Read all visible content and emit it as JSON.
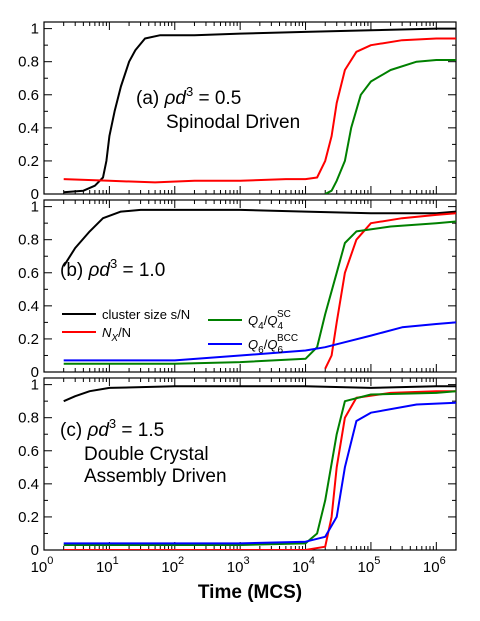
{
  "chart_data": {
    "type": "line",
    "xscale": "log",
    "xlim": [
      1,
      2000000
    ],
    "xlabel": "Time (MCS)",
    "x_tick_labels": [
      {
        "base": "10",
        "exp": "0",
        "value": 1
      },
      {
        "base": "10",
        "exp": "1",
        "value": 10
      },
      {
        "base": "10",
        "exp": "2",
        "value": 100
      },
      {
        "base": "10",
        "exp": "3",
        "value": 1000
      },
      {
        "base": "10",
        "exp": "4",
        "value": 10000
      },
      {
        "base": "10",
        "exp": "5",
        "value": 100000
      },
      {
        "base": "10",
        "exp": "6",
        "value": 1000000
      }
    ],
    "colors": {
      "cluster": "#000000",
      "nx": "#ff0000",
      "q4": "#008000",
      "q6": "#0000ff"
    },
    "legend": {
      "cluster": "cluster size s/N",
      "nx": "N_X/N",
      "q4": "Q_4/Q_4^SC",
      "q6": "Q_6/Q_6^BCC"
    },
    "panels": [
      {
        "label_prefix": "(a) ",
        "rho": "ρ",
        "d": "d",
        "exp": "3",
        "value_text": " = 0.5",
        "subtitle": [
          "Spinodal Driven"
        ],
        "ylim": [
          0,
          1.04
        ],
        "yticks": [
          "0",
          "0.2",
          "0.4",
          "0.6",
          "0.8",
          "1"
        ],
        "series": {
          "cluster": [
            [
              2,
              0.01
            ],
            [
              4,
              0.02
            ],
            [
              6,
              0.05
            ],
            [
              8,
              0.1
            ],
            [
              9,
              0.2
            ],
            [
              10,
              0.35
            ],
            [
              12,
              0.5
            ],
            [
              15,
              0.65
            ],
            [
              20,
              0.8
            ],
            [
              25,
              0.87
            ],
            [
              35,
              0.94
            ],
            [
              60,
              0.96
            ],
            [
              200,
              0.96
            ],
            [
              1000,
              0.97
            ],
            [
              10000,
              0.98
            ],
            [
              100000,
              0.99
            ],
            [
              1000000,
              1.0
            ],
            [
              2000000,
              1.0
            ]
          ],
          "nx": [
            [
              2,
              0.09
            ],
            [
              10,
              0.08
            ],
            [
              50,
              0.07
            ],
            [
              200,
              0.08
            ],
            [
              1000,
              0.08
            ],
            [
              5000,
              0.09
            ],
            [
              10000,
              0.09
            ],
            [
              15000,
              0.1
            ],
            [
              20000,
              0.2
            ],
            [
              25000,
              0.35
            ],
            [
              30000,
              0.55
            ],
            [
              40000,
              0.75
            ],
            [
              60000,
              0.86
            ],
            [
              100000,
              0.9
            ],
            [
              300000,
              0.93
            ],
            [
              1000000,
              0.94
            ],
            [
              2000000,
              0.94
            ]
          ],
          "q4": [
            [
              20000,
              0.0
            ],
            [
              25000,
              0.02
            ],
            [
              30000,
              0.08
            ],
            [
              40000,
              0.2
            ],
            [
              50000,
              0.4
            ],
            [
              70000,
              0.6
            ],
            [
              100000,
              0.68
            ],
            [
              200000,
              0.75
            ],
            [
              500000,
              0.8
            ],
            [
              1000000,
              0.81
            ],
            [
              2000000,
              0.81
            ]
          ]
        }
      },
      {
        "label_prefix": "(b) ",
        "rho": "ρ",
        "d": "d",
        "exp": "3",
        "value_text": " = 1.0",
        "subtitle": [],
        "ylim": [
          0,
          1.04
        ],
        "yticks": [
          "0",
          "0.2",
          "0.4",
          "0.6",
          "0.8",
          "1"
        ],
        "show_legend": true,
        "series": {
          "cluster": [
            [
              2,
              0.64
            ],
            [
              3,
              0.75
            ],
            [
              5,
              0.85
            ],
            [
              8,
              0.93
            ],
            [
              15,
              0.97
            ],
            [
              30,
              0.98
            ],
            [
              1000,
              0.98
            ],
            [
              10000,
              0.97
            ],
            [
              100000,
              0.96
            ],
            [
              1000000,
              0.96
            ],
            [
              2000000,
              0.97
            ]
          ],
          "nx": [
            [
              20000,
              0.02
            ],
            [
              25000,
              0.1
            ],
            [
              30000,
              0.3
            ],
            [
              40000,
              0.6
            ],
            [
              60000,
              0.8
            ],
            [
              100000,
              0.9
            ],
            [
              300000,
              0.93
            ],
            [
              1000000,
              0.95
            ],
            [
              2000000,
              0.96
            ]
          ],
          "q4": [
            [
              2,
              0.05
            ],
            [
              100,
              0.05
            ],
            [
              1000,
              0.06
            ],
            [
              10000,
              0.08
            ],
            [
              15000,
              0.15
            ],
            [
              20000,
              0.35
            ],
            [
              30000,
              0.6
            ],
            [
              40000,
              0.78
            ],
            [
              60000,
              0.85
            ],
            [
              200000,
              0.88
            ],
            [
              1000000,
              0.9
            ],
            [
              2000000,
              0.91
            ]
          ],
          "q6": [
            [
              2,
              0.07
            ],
            [
              100,
              0.07
            ],
            [
              1000,
              0.1
            ],
            [
              10000,
              0.13
            ],
            [
              20000,
              0.15
            ],
            [
              40000,
              0.18
            ],
            [
              100000,
              0.22
            ],
            [
              300000,
              0.27
            ],
            [
              1000000,
              0.29
            ],
            [
              2000000,
              0.3
            ]
          ]
        }
      },
      {
        "label_prefix": "(c) ",
        "rho": "ρ",
        "d": "d",
        "exp": "3",
        "value_text": " = 1.5",
        "subtitle": [
          "Double Crystal",
          "Assembly Driven"
        ],
        "ylim": [
          0,
          1.04
        ],
        "yticks": [
          "0",
          "0.2",
          "0.4",
          "0.6",
          "0.8",
          "1"
        ],
        "series": {
          "cluster": [
            [
              2,
              0.9
            ],
            [
              3,
              0.93
            ],
            [
              5,
              0.96
            ],
            [
              10,
              0.98
            ],
            [
              100,
              0.99
            ],
            [
              10000,
              0.99
            ],
            [
              100000,
              0.98
            ],
            [
              1000000,
              0.99
            ],
            [
              2000000,
              0.99
            ]
          ],
          "nx": [
            [
              2,
              0.0
            ],
            [
              10000,
              0.0
            ],
            [
              20000,
              0.02
            ],
            [
              25000,
              0.2
            ],
            [
              30000,
              0.5
            ],
            [
              40000,
              0.8
            ],
            [
              60000,
              0.92
            ],
            [
              200000,
              0.95
            ],
            [
              1000000,
              0.96
            ],
            [
              2000000,
              0.96
            ]
          ],
          "q4": [
            [
              2,
              0.03
            ],
            [
              1000,
              0.03
            ],
            [
              10000,
              0.04
            ],
            [
              15000,
              0.1
            ],
            [
              20000,
              0.3
            ],
            [
              30000,
              0.7
            ],
            [
              40000,
              0.9
            ],
            [
              100000,
              0.94
            ],
            [
              1000000,
              0.95
            ],
            [
              2000000,
              0.96
            ]
          ],
          "q6": [
            [
              2,
              0.04
            ],
            [
              1000,
              0.04
            ],
            [
              10000,
              0.05
            ],
            [
              20000,
              0.08
            ],
            [
              30000,
              0.2
            ],
            [
              40000,
              0.5
            ],
            [
              60000,
              0.78
            ],
            [
              100000,
              0.83
            ],
            [
              500000,
              0.88
            ],
            [
              2000000,
              0.89
            ]
          ]
        }
      }
    ]
  }
}
